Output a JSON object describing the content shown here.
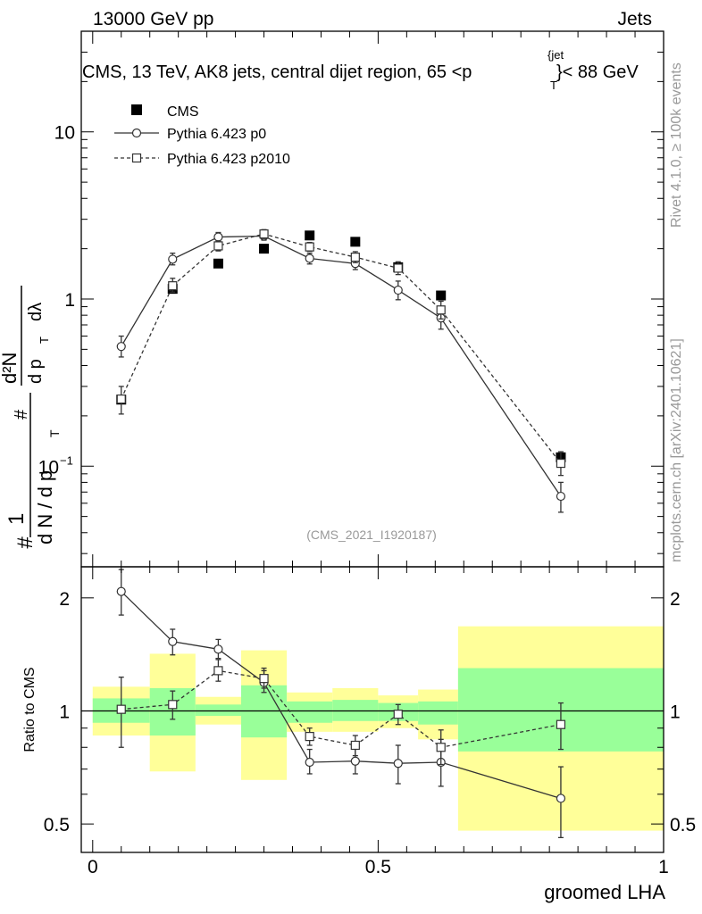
{
  "header": {
    "left": "13000 GeV pp",
    "right": "Jets"
  },
  "side_labels": {
    "rivet": "Rivet 4.1.0, ≥ 100k events",
    "mcplots": "mcplots.cern.ch [arXiv:2401.10621]"
  },
  "chart_data": [
    {
      "type": "scatter",
      "title": "CMS, 13 TeV, AK8 jets, central dijet region, 65 <p",
      "title_sup": "{jet",
      "title_sub": "T",
      "title_tail": "}< 88 GeV",
      "analysis_label": "(CMS_2021_I1920187)",
      "yscale": "log",
      "ylim": [
        0.025,
        40
      ],
      "xlim": [
        -0.02,
        1.0
      ],
      "ylabel": "1 / (dN / d pT) · d²N / (d pT dλ)",
      "ylabel_parts": {
        "one": "1",
        "hash": "#",
        "dN": "d N / d p",
        "T": "T",
        "d2N": "d²N",
        "dpT": "d p",
        "dlam": "dλ"
      },
      "yticks": [
        {
          "label": "10",
          "value": 10
        },
        {
          "label": "1",
          "value": 1
        },
        {
          "label": "10",
          "value": 0.1,
          "exp": "−1"
        }
      ],
      "legend": [
        "CMS",
        "Pythia 6.423 p0",
        "Pythia 6.423 p2010"
      ],
      "legend_position": "top-left",
      "series": [
        {
          "name": "CMS",
          "marker": "filled-square",
          "points": [
            {
              "x": 0.05,
              "y": 0.25
            },
            {
              "x": 0.14,
              "y": 1.15
            },
            {
              "x": 0.22,
              "y": 1.63
            },
            {
              "x": 0.3,
              "y": 2.0
            },
            {
              "x": 0.38,
              "y": 2.4
            },
            {
              "x": 0.46,
              "y": 2.2
            },
            {
              "x": 0.535,
              "y": 1.55
            },
            {
              "x": 0.61,
              "y": 1.05
            },
            {
              "x": 0.82,
              "y": 0.113
            }
          ]
        },
        {
          "name": "Pythia 6.423 p0",
          "marker": "open-circle",
          "line": "solid",
          "points": [
            {
              "x": 0.05,
              "y": 0.52,
              "lo": 0.45,
              "hi": 0.6
            },
            {
              "x": 0.14,
              "y": 1.73,
              "lo": 1.6,
              "hi": 1.88
            },
            {
              "x": 0.22,
              "y": 2.35,
              "lo": 2.2,
              "hi": 2.5
            },
            {
              "x": 0.3,
              "y": 2.38,
              "lo": 2.25,
              "hi": 2.52
            },
            {
              "x": 0.38,
              "y": 1.75,
              "lo": 1.62,
              "hi": 1.88
            },
            {
              "x": 0.46,
              "y": 1.63,
              "lo": 1.5,
              "hi": 1.78
            },
            {
              "x": 0.535,
              "y": 1.13,
              "lo": 0.99,
              "hi": 1.28
            },
            {
              "x": 0.61,
              "y": 0.77,
              "lo": 0.66,
              "hi": 0.9
            },
            {
              "x": 0.82,
              "y": 0.066,
              "lo": 0.053,
              "hi": 0.08
            }
          ]
        },
        {
          "name": "Pythia 6.423 p2010",
          "marker": "open-square",
          "line": "dashed",
          "points": [
            {
              "x": 0.05,
              "y": 0.252,
              "lo": 0.205,
              "hi": 0.3
            },
            {
              "x": 0.14,
              "y": 1.2,
              "lo": 1.1,
              "hi": 1.33
            },
            {
              "x": 0.22,
              "y": 2.08,
              "lo": 1.94,
              "hi": 2.23
            },
            {
              "x": 0.3,
              "y": 2.45,
              "lo": 2.3,
              "hi": 2.6
            },
            {
              "x": 0.38,
              "y": 2.05,
              "lo": 1.93,
              "hi": 2.18
            },
            {
              "x": 0.46,
              "y": 1.78,
              "lo": 1.65,
              "hi": 1.92
            },
            {
              "x": 0.535,
              "y": 1.53,
              "lo": 1.4,
              "hi": 1.67
            },
            {
              "x": 0.61,
              "y": 0.86,
              "lo": 0.76,
              "hi": 0.97
            },
            {
              "x": 0.82,
              "y": 0.104,
              "lo": 0.088,
              "hi": 0.122
            }
          ]
        }
      ]
    },
    {
      "type": "scatter",
      "ylabel": "Ratio to CMS",
      "xlabel": "groomed LHA",
      "yscale": "log",
      "ylim": [
        0.42,
        2.42
      ],
      "xlim": [
        -0.02,
        1.0
      ],
      "yticks": [
        {
          "label": "2",
          "value": 2
        },
        {
          "label": "1",
          "value": 1
        },
        {
          "label": "0.5",
          "value": 0.5
        }
      ],
      "xticks": [
        {
          "label": "0",
          "value": 0
        },
        {
          "label": "0.5",
          "value": 0.5
        },
        {
          "label": "1",
          "value": 1
        }
      ],
      "uncertainty_bands": [
        {
          "x0": 0.0,
          "x1": 0.1,
          "green_lo": 0.93,
          "green_hi": 1.08,
          "yellow_lo": 0.86,
          "yellow_hi": 1.16
        },
        {
          "x0": 0.1,
          "x1": 0.18,
          "green_lo": 0.86,
          "green_hi": 1.15,
          "yellow_lo": 0.69,
          "yellow_hi": 1.42
        },
        {
          "x0": 0.18,
          "x1": 0.26,
          "green_lo": 0.97,
          "green_hi": 1.04,
          "yellow_lo": 0.92,
          "yellow_hi": 1.09
        },
        {
          "x0": 0.26,
          "x1": 0.34,
          "green_lo": 0.85,
          "green_hi": 1.17,
          "yellow_lo": 0.655,
          "yellow_hi": 1.45
        },
        {
          "x0": 0.34,
          "x1": 0.42,
          "green_lo": 0.93,
          "green_hi": 1.06,
          "yellow_lo": 0.88,
          "yellow_hi": 1.12
        },
        {
          "x0": 0.42,
          "x1": 0.5,
          "green_lo": 0.94,
          "green_hi": 1.07,
          "yellow_lo": 0.88,
          "yellow_hi": 1.15
        },
        {
          "x0": 0.5,
          "x1": 0.57,
          "green_lo": 0.94,
          "green_hi": 1.05,
          "yellow_lo": 0.9,
          "yellow_hi": 1.1
        },
        {
          "x0": 0.57,
          "x1": 0.64,
          "green_lo": 0.92,
          "green_hi": 1.06,
          "yellow_lo": 0.84,
          "yellow_hi": 1.14
        },
        {
          "x0": 0.64,
          "x1": 1.0,
          "green_lo": 0.78,
          "green_hi": 1.3,
          "yellow_lo": 0.48,
          "yellow_hi": 1.68
        }
      ],
      "series": [
        {
          "name": "Pythia 6.423 p0",
          "marker": "open-circle",
          "line": "solid",
          "points": [
            {
              "x": 0.05,
              "y": 2.08,
              "lo": 1.8,
              "hi": 2.38
            },
            {
              "x": 0.14,
              "y": 1.53,
              "lo": 1.41,
              "hi": 1.65
            },
            {
              "x": 0.22,
              "y": 1.46,
              "lo": 1.38,
              "hi": 1.55
            },
            {
              "x": 0.3,
              "y": 1.19,
              "lo": 1.12,
              "hi": 1.28
            },
            {
              "x": 0.38,
              "y": 0.73,
              "lo": 0.68,
              "hi": 0.79
            },
            {
              "x": 0.46,
              "y": 0.735,
              "lo": 0.68,
              "hi": 0.8
            },
            {
              "x": 0.535,
              "y": 0.725,
              "lo": 0.64,
              "hi": 0.81
            },
            {
              "x": 0.61,
              "y": 0.73,
              "lo": 0.63,
              "hi": 0.84
            },
            {
              "x": 0.82,
              "y": 0.585,
              "lo": 0.46,
              "hi": 0.71
            }
          ]
        },
        {
          "name": "Pythia 6.423 p2010",
          "marker": "open-square",
          "line": "dashed",
          "points": [
            {
              "x": 0.05,
              "y": 1.01,
              "lo": 0.8,
              "hi": 1.23
            },
            {
              "x": 0.14,
              "y": 1.04,
              "lo": 0.95,
              "hi": 1.13
            },
            {
              "x": 0.22,
              "y": 1.28,
              "lo": 1.2,
              "hi": 1.37
            },
            {
              "x": 0.3,
              "y": 1.22,
              "lo": 1.15,
              "hi": 1.3
            },
            {
              "x": 0.38,
              "y": 0.855,
              "lo": 0.81,
              "hi": 0.9
            },
            {
              "x": 0.46,
              "y": 0.81,
              "lo": 0.76,
              "hi": 0.86
            },
            {
              "x": 0.535,
              "y": 0.98,
              "lo": 0.92,
              "hi": 1.04
            },
            {
              "x": 0.61,
              "y": 0.8,
              "lo": 0.72,
              "hi": 0.89
            },
            {
              "x": 0.82,
              "y": 0.92,
              "lo": 0.79,
              "hi": 1.05
            }
          ]
        }
      ]
    }
  ],
  "colors": {
    "band_yellow": "#ffff99",
    "band_green": "#99ff99",
    "series": "#333333",
    "data": "#000000",
    "axis": "#000000",
    "side_text": "#999999"
  }
}
